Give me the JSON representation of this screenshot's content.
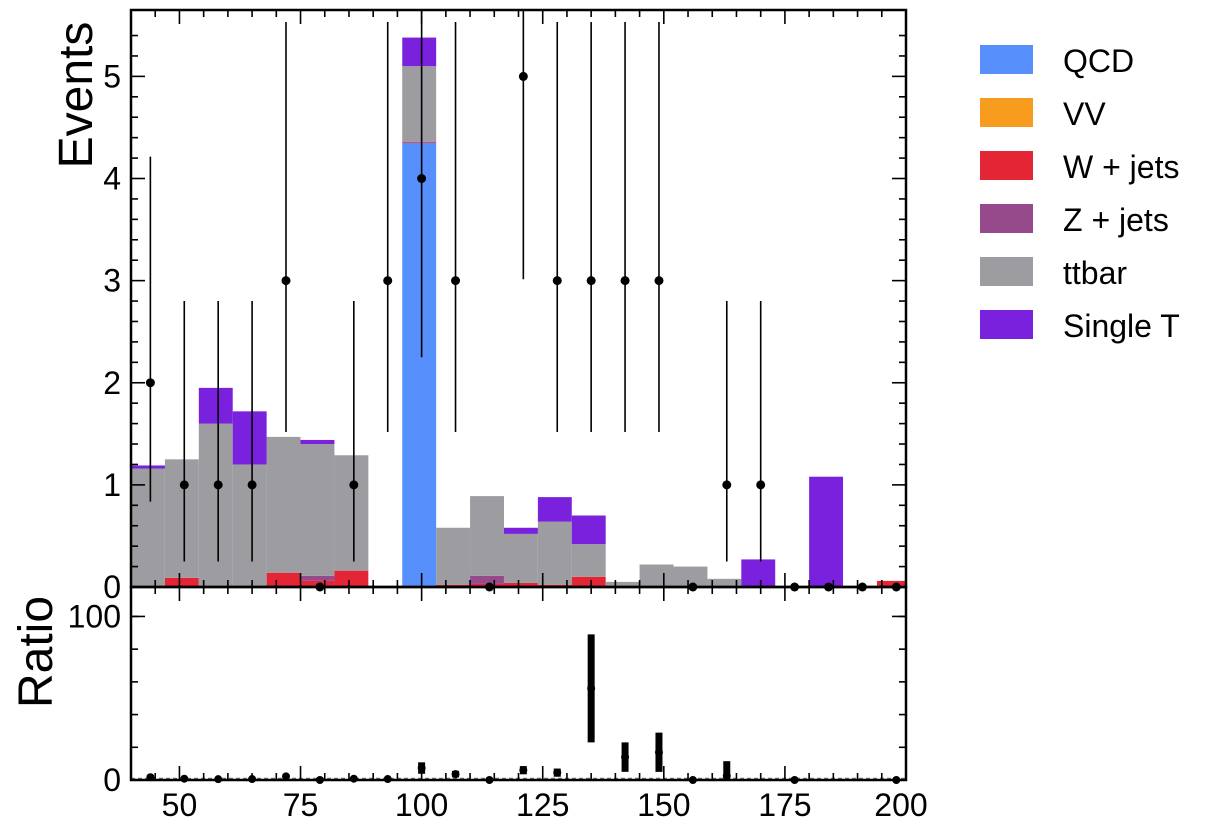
{
  "chart_data": [
    {
      "panel": "main",
      "type": "bar",
      "stacked": true,
      "ylabel": "Events",
      "xlabel": "",
      "xlim": [
        40,
        200
      ],
      "ylim": [
        0,
        5.65
      ],
      "y_ticks": [
        0,
        1,
        2,
        3,
        4,
        5
      ],
      "y_tick_labels": [
        "0",
        "1",
        "2",
        "3",
        "4",
        "5"
      ],
      "bin_edges": [
        40,
        47,
        54,
        61,
        68,
        75,
        82,
        89,
        96,
        103,
        110,
        117,
        124,
        131,
        138,
        145,
        152,
        159,
        166,
        173,
        180,
        187,
        194,
        201
      ],
      "series": [
        {
          "name": "QCD",
          "color": "#5790fc",
          "values": [
            0,
            0,
            0,
            0,
            0,
            0,
            0,
            0,
            4.35,
            0,
            0,
            0,
            0,
            0,
            0,
            0,
            0,
            0,
            0,
            0,
            0,
            0,
            0
          ]
        },
        {
          "name": "VV",
          "color": "#f89c20",
          "values": [
            0,
            0,
            0,
            0,
            0,
            0,
            0,
            0,
            0,
            0,
            0,
            0,
            0,
            0,
            0,
            0,
            0,
            0,
            0,
            0,
            0,
            0,
            0
          ]
        },
        {
          "name": "W + jets",
          "color": "#e42536",
          "values": [
            0,
            0.09,
            0,
            0,
            0.14,
            0.06,
            0.16,
            0,
            0.01,
            0.02,
            0.03,
            0.04,
            0.02,
            0.1,
            0,
            0,
            0,
            0,
            0,
            0,
            0,
            0,
            0.06
          ]
        },
        {
          "name": "Z + jets",
          "color": "#964a8b",
          "values": [
            0,
            0,
            0,
            0,
            0,
            0.05,
            0,
            0,
            0,
            0,
            0.08,
            0,
            0,
            0,
            0,
            0,
            0,
            0,
            0,
            0,
            0,
            0,
            0
          ]
        },
        {
          "name": "ttbar",
          "color": "#9c9ca1",
          "values": [
            1.16,
            1.16,
            1.6,
            1.2,
            1.33,
            1.29,
            1.13,
            0,
            0.74,
            0.56,
            0.78,
            0.48,
            0.62,
            0.32,
            0.05,
            0.22,
            0.2,
            0.08,
            0,
            0,
            0,
            0,
            0
          ]
        },
        {
          "name": "Single T",
          "color": "#7a21dd",
          "values": [
            0.03,
            0,
            0.35,
            0.52,
            0,
            0.04,
            0,
            0,
            0.28,
            0,
            0,
            0.06,
            0.24,
            0.28,
            0,
            0,
            0,
            0,
            0.27,
            0,
            1.08,
            0,
            0
          ]
        }
      ],
      "data_points": {
        "name": "Data",
        "x": [
          44,
          51,
          58,
          65,
          72,
          79,
          86,
          93,
          100,
          107,
          114,
          121,
          128,
          135,
          142,
          149,
          156,
          163,
          170,
          177,
          184,
          191,
          198
        ],
        "y": [
          2,
          1,
          1,
          1,
          3,
          0,
          1,
          3,
          4,
          3,
          0,
          5,
          3,
          3,
          3,
          3,
          0,
          1,
          1,
          0,
          0,
          0,
          0
        ]
      }
    },
    {
      "panel": "ratio",
      "type": "scatter",
      "ylabel": "Ratio",
      "xlabel": "",
      "xlim": [
        40,
        200
      ],
      "ylim": [
        0,
        118
      ],
      "y_ticks": [
        0,
        100
      ],
      "y_tick_labels": [
        "0",
        "100"
      ],
      "x_ticks": [
        50,
        75,
        100,
        125,
        150,
        175,
        200
      ],
      "x_tick_labels": [
        "50",
        "75",
        "100",
        "125",
        "150",
        "175",
        "200"
      ],
      "points": {
        "x": [
          44,
          51,
          58,
          65,
          72,
          79,
          86,
          93,
          100,
          107,
          114,
          121,
          128,
          135,
          142,
          149,
          156,
          163,
          177,
          198
        ],
        "y": [
          1.7,
          0.8,
          0.5,
          0.6,
          2.2,
          0,
          0.8,
          0.6,
          7.3,
          3.6,
          0,
          6,
          4.5,
          56,
          14,
          17,
          0,
          2.5,
          0,
          0
        ],
        "err": [
          1.5,
          0.8,
          0.5,
          0.6,
          1.3,
          0,
          0.8,
          0.4,
          3.5,
          2,
          0,
          2.5,
          2.5,
          33,
          9,
          12,
          0,
          9,
          0,
          0
        ]
      }
    }
  ],
  "legend": [
    {
      "label": "QCD",
      "color": "#5790fc"
    },
    {
      "label": "VV",
      "color": "#f89c20"
    },
    {
      "label": "W + jets",
      "color": "#e42536"
    },
    {
      "label": "Z + jets",
      "color": "#964a8b"
    },
    {
      "label": "ttbar",
      "color": "#9c9ca1"
    },
    {
      "label": "Single T",
      "color": "#7a21dd"
    }
  ]
}
